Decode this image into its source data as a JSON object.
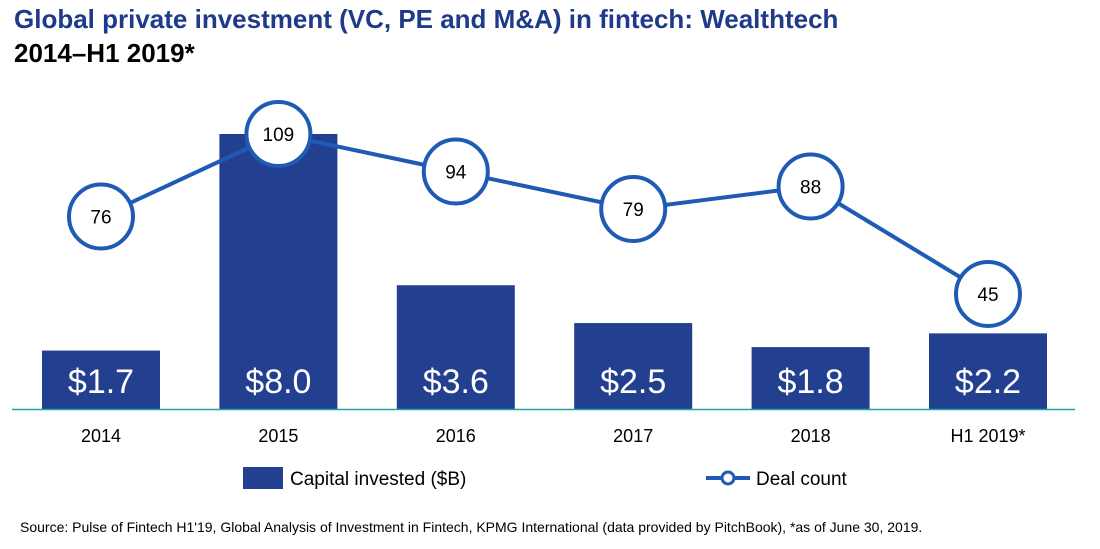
{
  "title": "Global private investment (VC, PE and M&A) in fintech: Wealthtech",
  "subtitle": "2014–H1 2019*",
  "source": "Source: Pulse of Fintech H1'19, Global Analysis of Investment in Fintech, KPMG International (data provided by PitchBook), *as of June 30, 2019.",
  "colors": {
    "bar": "#233f8f",
    "line": "#1f5bb5",
    "axis": "#1fa3a8",
    "title": "#1f3a8a"
  },
  "chart_data": {
    "type": "bar",
    "categories": [
      "2014",
      "2015",
      "2016",
      "2017",
      "2018",
      "H1 2019*"
    ],
    "series": [
      {
        "name": "Capital invested ($B)",
        "type": "bar",
        "values": [
          1.7,
          8.0,
          3.6,
          2.5,
          1.8,
          2.2
        ],
        "labels": [
          "$1.7",
          "$8.0",
          "$3.6",
          "$2.5",
          "$1.8",
          "$2.2"
        ]
      },
      {
        "name": "Deal count",
        "type": "line",
        "values": [
          76,
          109,
          94,
          79,
          88,
          45
        ],
        "labels": [
          "76",
          "109",
          "94",
          "79",
          "88",
          "45"
        ]
      }
    ],
    "legend": [
      "Capital invested ($B)",
      "Deal count"
    ],
    "legend_position": "bottom",
    "grid": false
  }
}
